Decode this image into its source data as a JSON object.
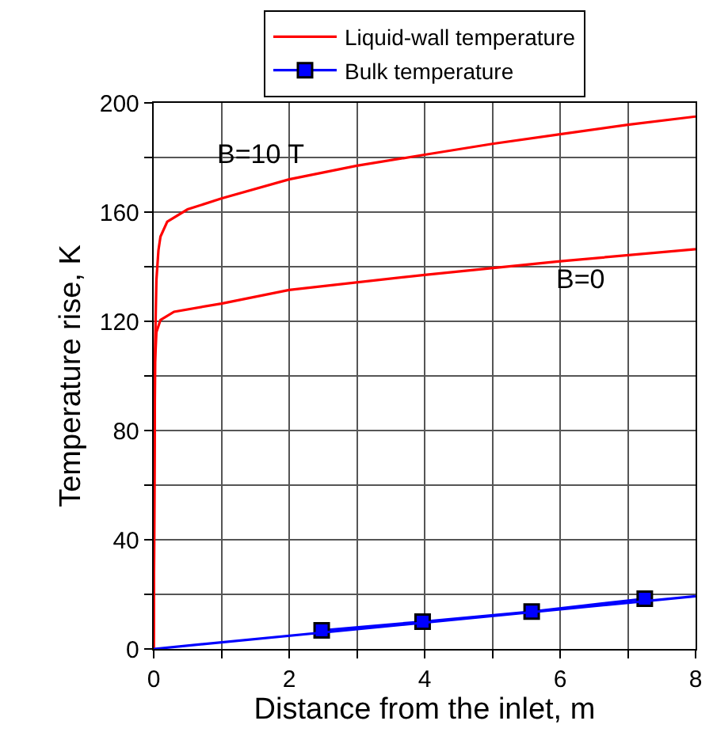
{
  "chart_data": {
    "type": "line",
    "xlabel": "Distance from the inlet, m",
    "ylabel": "Temperature rise, K",
    "xlim": [
      0,
      8
    ],
    "ylim": [
      0,
      200
    ],
    "xticks": [
      0,
      {
        "value": 1,
        "label": null
      },
      2,
      {
        "value": 3,
        "label": null
      },
      4,
      {
        "value": 5,
        "label": null
      },
      6,
      {
        "value": 7,
        "label": null
      },
      8
    ],
    "yticks": [
      0,
      {
        "value": 20,
        "label": null
      },
      40,
      {
        "value": 60,
        "label": null
      },
      80,
      {
        "value": 100,
        "label": null
      },
      120,
      {
        "value": 140,
        "label": null
      },
      160,
      {
        "value": 180,
        "label": null
      },
      200
    ],
    "grid": true,
    "legend": "top",
    "series": [
      {
        "name": "Liquid-wall temperature",
        "color": "#ff0000",
        "marker": "none",
        "x": [
          0,
          0.01,
          0.02,
          0.04,
          0.07,
          0.1,
          0.2,
          0.5,
          1,
          2,
          3,
          4,
          5,
          6,
          7,
          8
        ],
        "values": [
          0,
          60,
          110,
          135,
          146,
          151,
          156.5,
          161,
          165,
          172,
          177,
          181,
          185,
          188.5,
          192,
          195
        ]
      },
      {
        "color": "#ff0000",
        "marker": "none",
        "x": [
          0,
          0.01,
          0.02,
          0.04,
          0.1,
          0.3,
          1,
          2,
          4,
          6,
          8
        ],
        "values": [
          0,
          60,
          105,
          116,
          120.5,
          123.5,
          126.5,
          131.5,
          137,
          142,
          146.4
        ]
      },
      {
        "name": "Bulk temperature",
        "color": "#0000ff",
        "marker": "square",
        "x": [
          2.48,
          3.97,
          5.58,
          7.25
        ],
        "values": [
          6.8,
          10,
          13.7,
          18.4
        ]
      },
      {
        "color": "#0000ff",
        "marker": "none",
        "x": [
          0,
          8
        ],
        "values": [
          0,
          19.3
        ]
      }
    ],
    "annotations": [
      "B=10 T",
      "B=0"
    ]
  }
}
